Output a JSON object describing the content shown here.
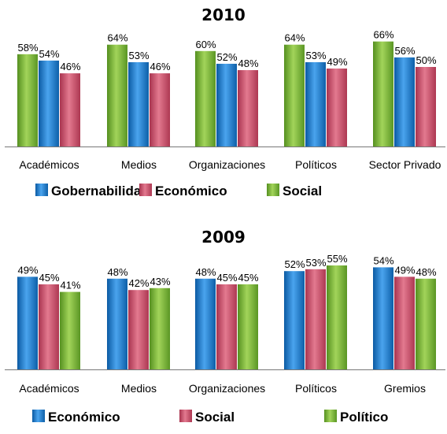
{
  "colors": {
    "blue": "#1a74c4",
    "red": "#c94a68",
    "green": "#74b12c"
  },
  "chart_data": [
    {
      "type": "bar",
      "title": "2010",
      "categories": [
        "Académicos",
        "Medios",
        "Organizaciones",
        "Políticos",
        "Sector Privado"
      ],
      "bar_order": [
        "Social",
        "Gobernabilidad",
        "Económico"
      ],
      "series": [
        {
          "name": "Social",
          "color": "#74b12c",
          "values": [
            58,
            64,
            60,
            64,
            66
          ],
          "labels": [
            "58%",
            "64%",
            "60%",
            "64%",
            "66%"
          ]
        },
        {
          "name": "Gobernabilidad",
          "color": "#1a74c4",
          "values": [
            54,
            53,
            52,
            53,
            56
          ],
          "labels": [
            "54%",
            "53%",
            "52%",
            "53%",
            "56%"
          ]
        },
        {
          "name": "Económico",
          "color": "#c94a68",
          "values": [
            46,
            46,
            48,
            49,
            50
          ],
          "labels": [
            "46%",
            "46%",
            "48%",
            "49%",
            "50%"
          ]
        }
      ],
      "legend": [
        "Gobernabilidad",
        "Económico",
        "Social"
      ],
      "legend_position": "bottom",
      "ylim": [
        0,
        70
      ],
      "grid": false
    },
    {
      "type": "bar",
      "title": "2009",
      "categories": [
        "Académicos",
        "Medios",
        "Organizaciones",
        "Políticos",
        "Gremios"
      ],
      "bar_order": [
        "Económico",
        "Social",
        "Político"
      ],
      "series": [
        {
          "name": "Económico",
          "color": "#1a74c4",
          "values": [
            49,
            48,
            48,
            52,
            54
          ],
          "labels": [
            "49%",
            "48%",
            "48%",
            "52%",
            "54%"
          ]
        },
        {
          "name": "Social",
          "color": "#c94a68",
          "values": [
            45,
            42,
            45,
            53,
            49
          ],
          "labels": [
            "45%",
            "42%",
            "45%",
            "53%",
            "49%"
          ]
        },
        {
          "name": "Político",
          "color": "#74b12c",
          "values": [
            41,
            43,
            45,
            55,
            48
          ],
          "labels": [
            "41%",
            "43%",
            "45%",
            "55%",
            "48%"
          ]
        }
      ],
      "legend": [
        "Económico",
        "Social",
        "Político"
      ],
      "legend_position": "bottom",
      "ylim": [
        0,
        60
      ],
      "grid": false
    }
  ]
}
